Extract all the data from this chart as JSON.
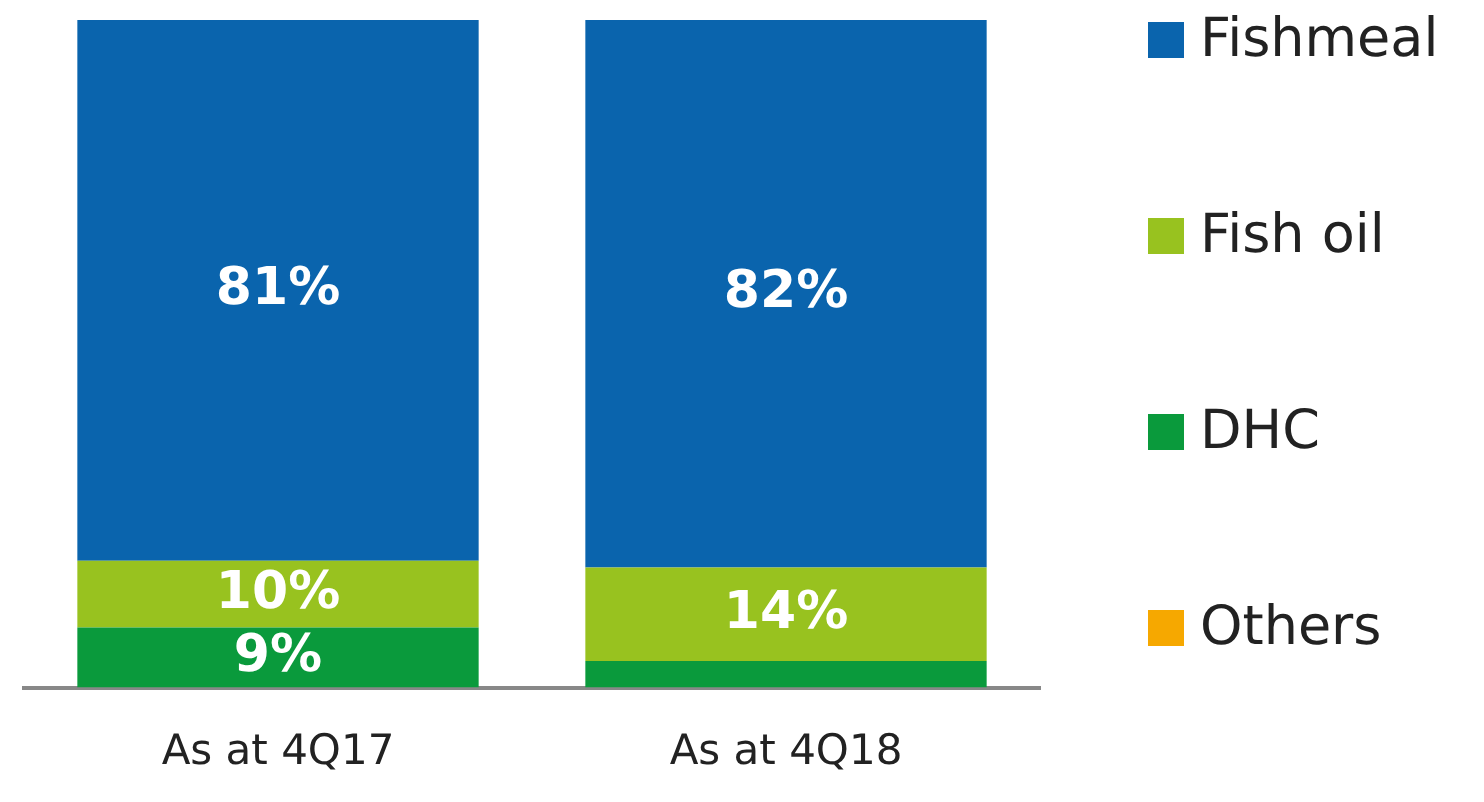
{
  "chart_data": {
    "type": "bar",
    "stacked": true,
    "categories": [
      "As at 4Q17",
      "As at 4Q18"
    ],
    "legend": "right",
    "series": [
      {
        "name": "Others",
        "color": "#f6a800",
        "values": [
          0,
          0
        ],
        "value_labels": [
          null,
          null
        ]
      },
      {
        "name": "DHC",
        "color": "#0a9a3c",
        "values": [
          9,
          4
        ],
        "value_labels": [
          "9%",
          null
        ]
      },
      {
        "name": "Fish oil",
        "color": "#98c21f",
        "values": [
          10,
          14
        ],
        "value_labels": [
          "10%",
          "14%"
        ]
      },
      {
        "name": "Fishmeal",
        "color": "#0a64ad",
        "values": [
          81,
          82
        ],
        "value_labels": [
          "81%",
          "82%"
        ]
      }
    ]
  }
}
